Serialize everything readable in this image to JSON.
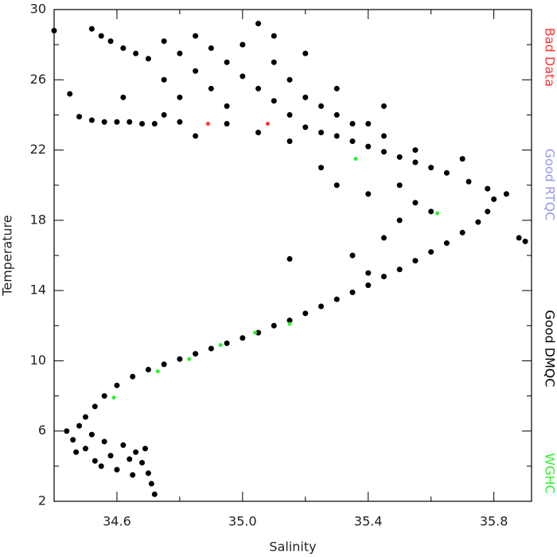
{
  "chart_data": {
    "type": "scatter",
    "x_label": "Salinity",
    "y_label": "Temperature",
    "xlim": [
      34.4,
      35.92
    ],
    "ylim": [
      2,
      30
    ],
    "xticks": [
      34.6,
      {
        "value": 35,
        "label": "35.0"
      },
      35.4,
      35.8
    ],
    "xticks_minor": [
      34.8,
      35.2,
      35.6
    ],
    "yticks": [
      2,
      6,
      10,
      14,
      18,
      22,
      26,
      30
    ],
    "yticks_minor": [
      4,
      8,
      12,
      16,
      20,
      24,
      28
    ],
    "legend": "right",
    "series": [
      {
        "name": "Bad Data",
        "color": "#ff3333",
        "x": [
          34.89,
          35.08
        ],
        "y": [
          23.5,
          23.5
        ]
      },
      {
        "name": "Good RTQC",
        "color": "#9999ee",
        "x": [],
        "y": []
      },
      {
        "name": "Good DMQC",
        "color": "#000000",
        "x": [
          34.72,
          34.71,
          34.7,
          34.68,
          34.66,
          34.62,
          34.58,
          34.55,
          34.6,
          34.65,
          34.5,
          34.46,
          34.44,
          34.48,
          34.52,
          34.56,
          34.64,
          34.69,
          34.53,
          34.47,
          34.5,
          34.53,
          34.56,
          34.6,
          34.65,
          34.7,
          34.75,
          34.8,
          34.85,
          34.9,
          34.95,
          35.0,
          35.05,
          35.1,
          35.15,
          35.2,
          35.25,
          35.3,
          35.35,
          35.4,
          35.45,
          35.5,
          35.55,
          35.6,
          35.65,
          35.7,
          35.75,
          35.78,
          35.8,
          35.78,
          35.72,
          35.65,
          35.6,
          35.55,
          35.5,
          35.45,
          35.4,
          35.35,
          35.3,
          35.25,
          35.2,
          35.4,
          35.35,
          35.45,
          35.5,
          35.55,
          35.4,
          35.3,
          35.25,
          35.5,
          35.6,
          35.88,
          35.9,
          35.84,
          35.7,
          35.55,
          35.45,
          35.35,
          35.15,
          35.15,
          35.1,
          35.05,
          35.0,
          34.95,
          34.9,
          34.85,
          35.05,
          35.0,
          35.1,
          35.15,
          35.2,
          35.25,
          35.3,
          35.2,
          35.1,
          34.95,
          34.9,
          34.85,
          34.8,
          34.75,
          34.95,
          35.05,
          35.15,
          35.3,
          35.4,
          35.45,
          34.75,
          34.8,
          34.72,
          34.68,
          34.64,
          34.6,
          34.56,
          34.52,
          34.48,
          34.45,
          34.4,
          34.52,
          34.55,
          34.58,
          34.62,
          34.66,
          34.7,
          34.75,
          34.8,
          34.85,
          34.62
        ],
        "y": [
          2.4,
          3.0,
          3.6,
          4.2,
          4.8,
          5.2,
          4.6,
          4.0,
          3.8,
          3.5,
          5.0,
          5.5,
          6.0,
          6.3,
          5.8,
          5.4,
          4.4,
          5.0,
          4.3,
          4.8,
          6.8,
          7.4,
          8.0,
          8.6,
          9.1,
          9.5,
          9.8,
          10.1,
          10.4,
          10.7,
          11.0,
          11.3,
          11.6,
          12.0,
          12.3,
          12.7,
          13.1,
          13.5,
          13.9,
          14.3,
          14.8,
          15.2,
          15.7,
          16.2,
          16.7,
          17.3,
          17.9,
          18.5,
          19.2,
          19.8,
          20.2,
          20.7,
          21.0,
          21.3,
          21.6,
          21.9,
          22.2,
          22.5,
          22.8,
          23.0,
          23.3,
          15.0,
          16.0,
          17.0,
          18.0,
          19.0,
          19.5,
          20.0,
          21.0,
          20.0,
          18.5,
          17.0,
          16.8,
          19.5,
          21.5,
          22.0,
          22.8,
          23.5,
          15.8,
          24.0,
          24.8,
          25.5,
          26.2,
          27.0,
          27.8,
          28.5,
          29.2,
          28.0,
          27.0,
          26.0,
          25.0,
          24.5,
          25.5,
          27.5,
          28.5,
          24.5,
          25.5,
          26.5,
          27.5,
          28.2,
          23.5,
          23.0,
          22.5,
          24.0,
          23.5,
          24.5,
          26.0,
          25.0,
          23.5,
          23.5,
          23.6,
          23.6,
          23.6,
          23.7,
          23.9,
          25.2,
          28.8,
          28.9,
          28.5,
          28.2,
          27.8,
          27.5,
          27.2,
          24.0,
          23.6,
          22.8,
          25.0
        ]
      },
      {
        "name": "WGHC",
        "color": "#33ee33",
        "x": [
          34.59,
          34.73,
          34.83,
          34.93,
          35.04,
          35.15,
          35.62,
          35.36
        ],
        "y": [
          7.9,
          9.4,
          10.1,
          10.9,
          11.6,
          12.1,
          18.4,
          21.5
        ]
      }
    ]
  }
}
